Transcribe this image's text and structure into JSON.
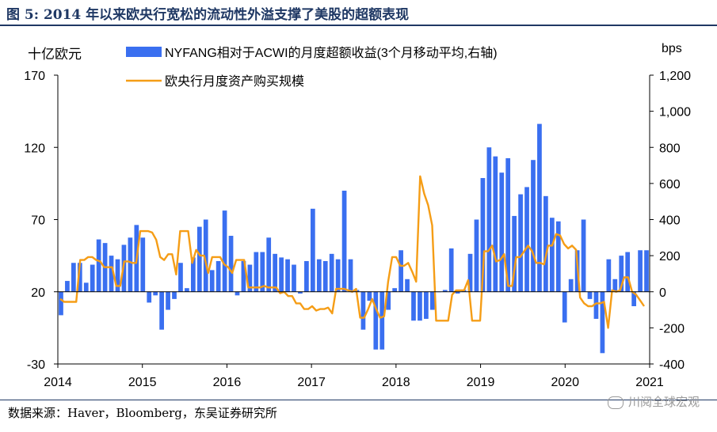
{
  "title": "图 5:  2014 年以来欧央行宽松的流动性外溢支撑了美股的超额表现",
  "source": "数据来源：Haver，Bloomberg，东吴证券研究所",
  "watermark": "川阅全球宏观",
  "colors": {
    "bar": "#3a6ff0",
    "line": "#f59d16",
    "title": "#1f3864"
  },
  "chart_data": {
    "type": "bar+line",
    "left_axis_label": "十亿欧元",
    "right_axis_label": "bps",
    "left_ylim": [
      -30,
      170
    ],
    "right_ylim": [
      -400,
      1200
    ],
    "left_ticks": [
      "170",
      "120",
      "70",
      "20",
      "-30"
    ],
    "right_ticks": [
      "1,200",
      "1,000",
      "800",
      "600",
      "400",
      "200",
      "0",
      "-200",
      "-400"
    ],
    "x_ticks": [
      "2014",
      "2015",
      "2016",
      "2017",
      "2018",
      "2019",
      "2020",
      "2021"
    ],
    "x_range": [
      "2014-01",
      "2021-01"
    ],
    "legend": [
      {
        "name": "NYFANG相对于ACWI的月度超额收益(3个月移动平均,右轴)",
        "type": "bar"
      },
      {
        "name": "欧央行月度资产购买规模",
        "type": "line"
      }
    ],
    "series": [
      {
        "name": "NYFANG相对于ACWI的月度超额收益(3个月移动平均,右轴)",
        "axis": "right",
        "type": "bar",
        "values": [
          -130,
          60,
          160,
          160,
          50,
          150,
          290,
          270,
          200,
          180,
          260,
          300,
          370,
          300,
          -60,
          -20,
          -210,
          -100,
          -40,
          160,
          20,
          190,
          360,
          400,
          120,
          170,
          450,
          310,
          -20,
          170,
          150,
          220,
          220,
          300,
          210,
          190,
          180,
          150,
          -10,
          170,
          460,
          180,
          170,
          210,
          180,
          560,
          180,
          10,
          -210,
          -50,
          -320,
          -320,
          -100,
          20,
          230,
          70,
          -160,
          -160,
          -150,
          -100,
          0,
          10,
          240,
          -10,
          10,
          210,
          400,
          630,
          800,
          750,
          660,
          740,
          420,
          540,
          580,
          730,
          930,
          530,
          410,
          390,
          -170,
          70,
          230,
          400,
          -40,
          -150,
          -340,
          180,
          70,
          200,
          220,
          -80,
          230,
          230
        ]
      },
      {
        "name": "欧央行月度资产购买规模",
        "axis": "left",
        "type": "line",
        "values": [
          15,
          13,
          13,
          13,
          13,
          42,
          42,
          44,
          44,
          42,
          41,
          37,
          37,
          37,
          24,
          24,
          41,
          41,
          40,
          40,
          62,
          62,
          62,
          61,
          56,
          44,
          42,
          46,
          46,
          32,
          62,
          62,
          62,
          40,
          49,
          45,
          45,
          33,
          44,
          44,
          44,
          39,
          37,
          33,
          42,
          42,
          42,
          23,
          23,
          23,
          23,
          24,
          23,
          23,
          23,
          19,
          20,
          17,
          17,
          12,
          12,
          8,
          8,
          10,
          7,
          8,
          8,
          9,
          5,
          22,
          22,
          22,
          21,
          20,
          22,
          2,
          2,
          8,
          15,
          8,
          2,
          3,
          27,
          44,
          44,
          38,
          38,
          40,
          34,
          27,
          100,
          88,
          80,
          66,
          0,
          0,
          0,
          0,
          18,
          21,
          21,
          21,
          28,
          0,
          0,
          0,
          48,
          48,
          52,
          41,
          42,
          46,
          24,
          24,
          44,
          44,
          48,
          52,
          48,
          40,
          40,
          39,
          52,
          52,
          60,
          59,
          53,
          50,
          52,
          49,
          16,
          12,
          10,
          10,
          12,
          12,
          13,
          -5,
          21,
          20,
          21,
          30,
          30,
          20,
          18,
          14,
          10
        ]
      }
    ]
  }
}
